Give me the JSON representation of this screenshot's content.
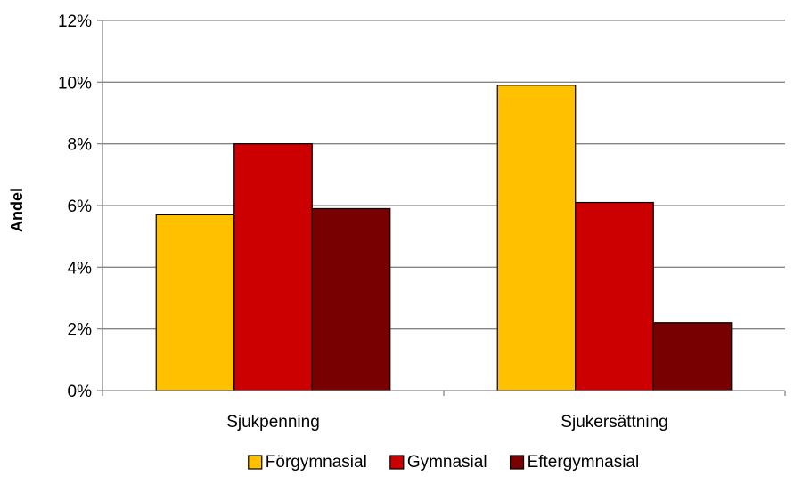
{
  "chart_data": {
    "type": "bar",
    "title": "",
    "xlabel": "",
    "ylabel": "Andel",
    "ylim": [
      0,
      12
    ],
    "y_tick_values": [
      0,
      2,
      4,
      6,
      8,
      10,
      12
    ],
    "y_tick_suffix": "%",
    "grid": true,
    "legend_position": "bottom",
    "categories": [
      "Sjukpenning",
      "Sjukersättning"
    ],
    "series": [
      {
        "name": "Förgymnasial",
        "color": "#FFC000",
        "values": [
          5.7,
          9.9
        ]
      },
      {
        "name": "Gymnasial",
        "color": "#CC0000",
        "values": [
          8.0,
          6.1
        ]
      },
      {
        "name": "Eftergymnasial",
        "color": "#780000",
        "values": [
          5.9,
          2.2
        ]
      }
    ]
  }
}
